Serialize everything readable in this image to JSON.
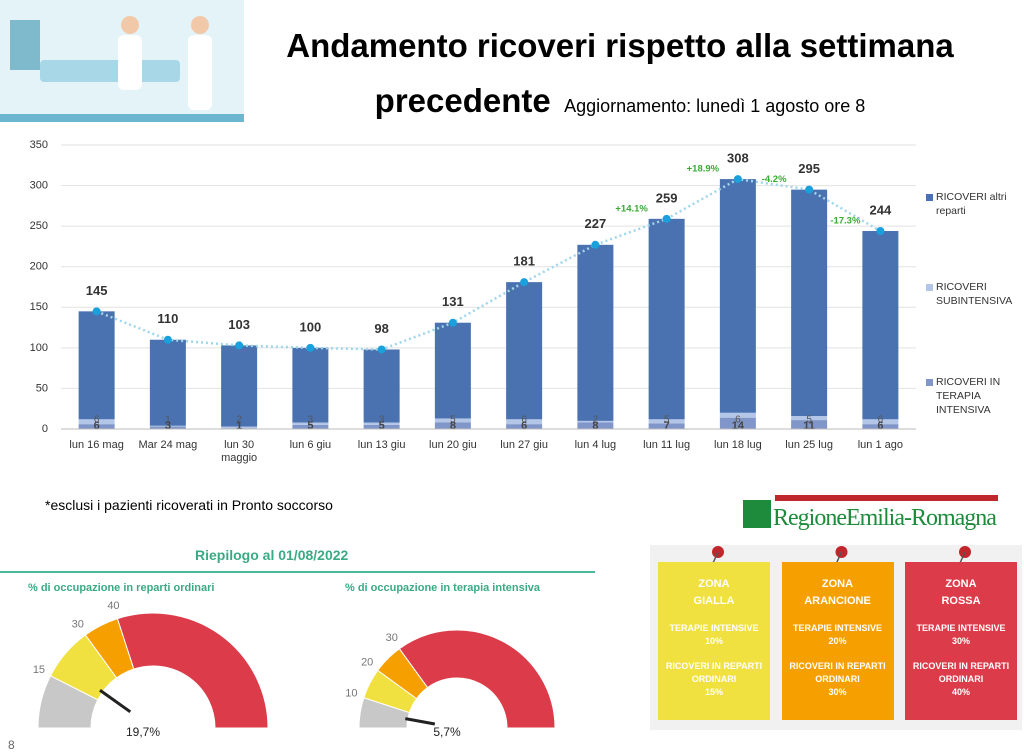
{
  "header": {
    "title": "Andamento ricoveri rispetto alla settimana precedente",
    "subtitle": "Aggiornamento: lunedì 1 agosto ore 8"
  },
  "chart_data": {
    "type": "bar",
    "stacked": true,
    "categories": [
      "lun 16 mag",
      "Mar 24 mag",
      "lun 30\nmaggio",
      "lun  6 giu",
      "lun 13 giu",
      "lun 20 giu",
      "lun 27 giu",
      "lun 4 lug",
      "lun 11 lug",
      "lun 18 lug",
      "lun 25 lug",
      "lun 1 ago"
    ],
    "series": [
      {
        "name": "RICOVERI altri reparti",
        "color": "#4a72b0",
        "values": [
          133,
          106,
          100,
          92,
          90,
          118,
          169,
          217,
          247,
          288,
          279,
          232
        ]
      },
      {
        "name": "RICOVERI SUBINTENSIVA",
        "color": "#b4c6e7",
        "values": [
          6,
          1,
          2,
          3,
          3,
          5,
          6,
          2,
          5,
          6,
          5,
          6
        ]
      },
      {
        "name": "RICOVERI IN TERAPIA INTENSIVA",
        "color": "#8096c8",
        "values": [
          6,
          3,
          1,
          5,
          5,
          8,
          6,
          8,
          7,
          14,
          11,
          6
        ]
      }
    ],
    "line": {
      "color": "#1aa0dc",
      "values": [
        145,
        110,
        103,
        100,
        98,
        131,
        181,
        227,
        259,
        308,
        295,
        244
      ]
    },
    "change_labels": [
      null,
      null,
      null,
      null,
      null,
      null,
      null,
      null,
      "+14.1%",
      "+18.9%",
      "-4.2%",
      "-17.3%"
    ],
    "ylim": [
      0,
      350
    ],
    "yticks": [
      0,
      50,
      100,
      150,
      200,
      250,
      300,
      350
    ],
    "grid": true,
    "legend": "right"
  },
  "footnote": "*esclusi i pazienti ricoverati in Pronto soccorso",
  "logo": "RegioneEmilia-Romagna",
  "summary": {
    "title": "Riepilogo al 01/08/2022",
    "gauges": [
      {
        "title": "% di occupazione in reparti ordinari",
        "lim": [
          0,
          100
        ],
        "ticks": [
          15,
          30,
          40
        ],
        "value": 19.7,
        "value_label": "19,7%",
        "colors": [
          "#c8c8c8",
          "#f0e040",
          "#f5a000",
          "#dc3c4a"
        ]
      },
      {
        "title": "% di occupazione in terapia intensiva",
        "lim": [
          0,
          100
        ],
        "ticks": [
          10,
          20,
          30
        ],
        "value": 5.7,
        "value_label": "5,7%",
        "colors": [
          "#c8c8c8",
          "#f0e040",
          "#f5a000",
          "#dc3c4a"
        ]
      }
    ]
  },
  "zones": [
    {
      "title": "ZONA GIALLA",
      "color": "#f0e040",
      "items": [
        {
          "label": "TERAPIE INTENSIVE",
          "value": "10%"
        },
        {
          "label": "RICOVERI IN REPARTI ORDINARI",
          "value": "15%"
        }
      ]
    },
    {
      "title": "ZONA ARANCIONE",
      "color": "#f5a000",
      "items": [
        {
          "label": "TERAPIE INTENSIVE",
          "value": "20%"
        },
        {
          "label": "RICOVERI IN REPARTI ORDINARI",
          "value": "30%"
        }
      ]
    },
    {
      "title": "ZONA ROSSA",
      "color": "#dc3c4a",
      "items": [
        {
          "label": "TERAPIE INTENSIVE",
          "value": "30%"
        },
        {
          "label": "RICOVERI IN REPARTI ORDINARI",
          "value": "40%"
        }
      ]
    }
  ],
  "page_number": "8"
}
